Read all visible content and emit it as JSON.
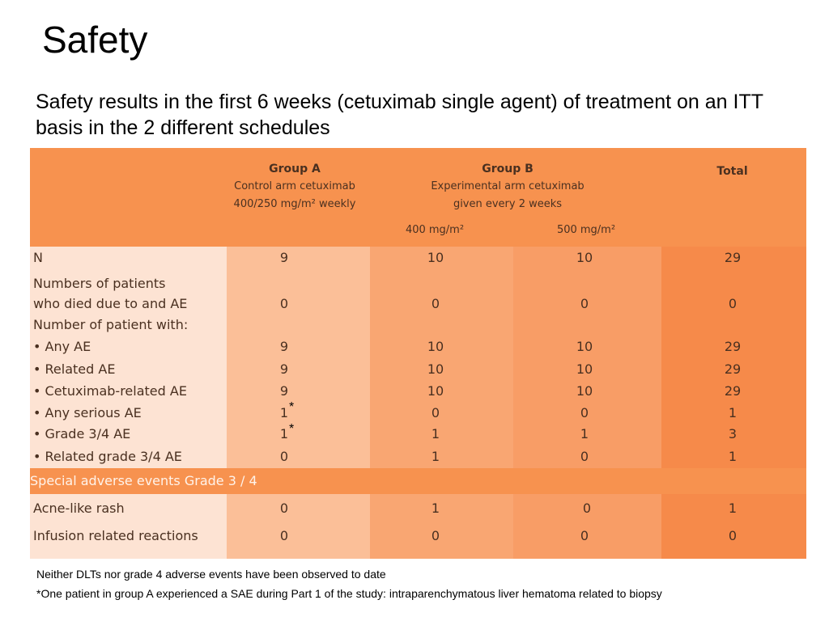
{
  "slide": {
    "title": "Safety",
    "subtitle": "Safety results in the first 6 weeks (cetuximab single agent) of treatment on an ITT basis in the 2 different schedules"
  },
  "table": {
    "group_a": {
      "title": "Group A",
      "line1": "Control arm cetuximab",
      "line2": "400/250 mg/m² weekly"
    },
    "group_b": {
      "title": "Group B",
      "line1": "Experimental arm cetuximab",
      "line2": "given every 2 weeks",
      "sub1": "400 mg/m²",
      "sub2": "500 mg/m²"
    },
    "total_header": "Total",
    "rows": [
      {
        "label": "N",
        "a": "9",
        "b400": "10",
        "b500": "10",
        "total": "29"
      },
      {
        "label1": "Numbers of patients",
        "label2": "who died due to and AE",
        "a": "0",
        "b400": "0",
        "b500": "0",
        "total": "0"
      },
      {
        "label": "Number of patient with:"
      },
      {
        "label": "• Any AE",
        "a": "9",
        "b400": "10",
        "b500": "10",
        "total": "29"
      },
      {
        "label": "• Related AE",
        "a": "9",
        "b400": "10",
        "b500": "10",
        "total": "29"
      },
      {
        "label": "• Cetuximab-related AE",
        "a": "9",
        "b400": "10",
        "b500": "10",
        "total": "29"
      },
      {
        "label": "• Any serious AE",
        "a": "1",
        "a_mark": "*",
        "b400": "0",
        "b500": "0",
        "total": "1"
      },
      {
        "label": "• Grade 3/4 AE",
        "a": "1",
        "a_mark": "*",
        "b400": "1",
        "b500": "1",
        "total": "3"
      },
      {
        "label": "• Related grade 3/4 AE",
        "a": "0",
        "b400": "1",
        "b500": "0",
        "total": "1"
      }
    ],
    "special_header": "Special adverse events Grade 3 / 4",
    "special_rows": [
      {
        "label": "Acne-like rash",
        "a": "0",
        "b400": "1",
        "b500": "0",
        "total": "1"
      },
      {
        "label": "Infusion related reactions",
        "a": "0",
        "b400": "0",
        "b500": "0",
        "total": "0"
      }
    ],
    "colors": {
      "header": "#f7924f",
      "label_col": "#fde3d3",
      "group_a_col": "#fbbf98",
      "b400_col": "#f9a672",
      "b500_col": "#f89d66",
      "total_col": "#f68a4a"
    }
  },
  "footnotes": {
    "note1": "Neither DLTs nor grade 4 adverse events have been observed to date",
    "note2": "*One patient in group A experienced a SAE during Part 1 of the study: intraparenchymatous liver hematoma related to biopsy"
  }
}
